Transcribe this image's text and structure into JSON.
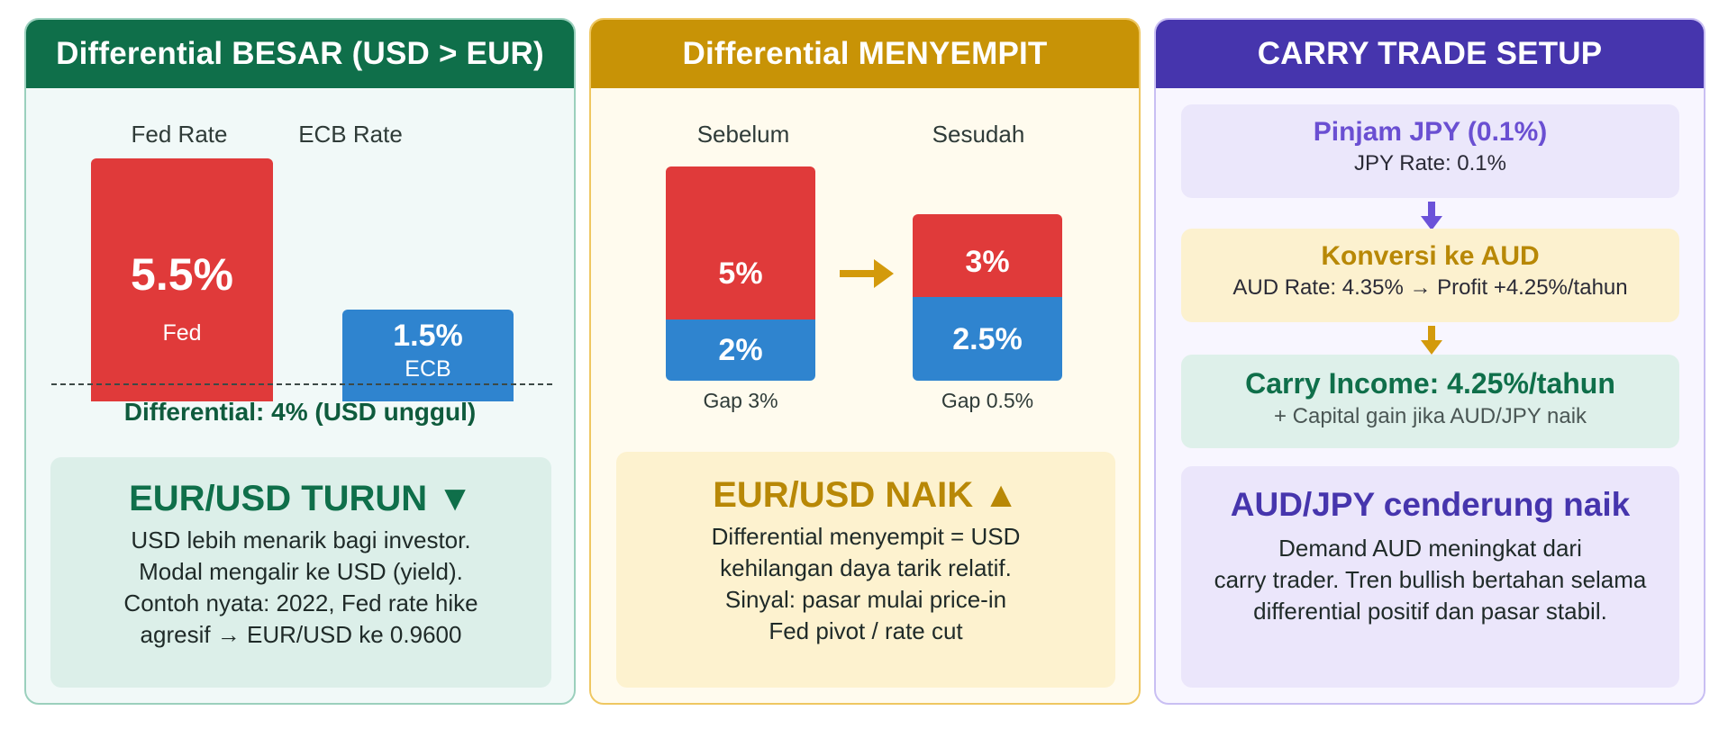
{
  "panels": {
    "left": {
      "header": "Differential BESAR (USD > EUR)",
      "fed_label": "Fed Rate",
      "ecb_label": "ECB Rate",
      "fed_bar": {
        "value": 5.5,
        "value_label": "5.5%",
        "sub": "Fed"
      },
      "ecb_bar": {
        "value": 1.5,
        "value_label": "1.5%",
        "sub": "ECB"
      },
      "differential_text": "Differential: 4% (USD unggul)",
      "result": {
        "title": "EUR/USD TURUN ▼",
        "lines": [
          "USD lebih menarik bagi investor.",
          "Modal mengalir ke USD (yield).",
          "Contoh nyata: 2022, Fed rate hike",
          "agresif → EUR/USD ke 0.9600"
        ]
      }
    },
    "middle": {
      "header": "Differential MENYEMPIT",
      "before_label": "Sebelum",
      "after_label": "Sesudah",
      "before": {
        "fed": 5,
        "fed_label": "5%",
        "ecb": 2,
        "ecb_label": "2%",
        "gap": "Gap 3%"
      },
      "after": {
        "fed": 3,
        "fed_label": "3%",
        "ecb": 2.5,
        "ecb_label": "2.5%",
        "gap": "Gap 0.5%"
      },
      "result": {
        "title": "EUR/USD NAIK ▲",
        "lines": [
          "Differential menyempit = USD",
          "kehilangan daya tarik relatif.",
          "Sinyal: pasar mulai price-in",
          "Fed pivot / rate cut"
        ]
      }
    },
    "right": {
      "header": "CARRY TRADE SETUP",
      "steps": [
        {
          "title": "Pinjam JPY (0.1%)",
          "sub": "JPY Rate: 0.1%"
        },
        {
          "title": "Konversi ke AUD",
          "sub": "AUD Rate: 4.35% → Profit +4.25%/tahun"
        },
        {
          "title": "Carry Income: 4.25%/tahun",
          "sub": "+ Capital gain jika AUD/JPY naik"
        }
      ],
      "result": {
        "title": "AUD/JPY cenderung naik",
        "lines": [
          "Demand AUD meningkat dari",
          "carry trader. Tren bullish bertahan selama",
          "differential positif dan pasar stabil."
        ]
      }
    }
  },
  "colors": {
    "green": "#0f6f4a",
    "gold": "#c89306",
    "purple": "#4635ad",
    "red": "#e03a3a",
    "blue": "#2f84cf"
  }
}
